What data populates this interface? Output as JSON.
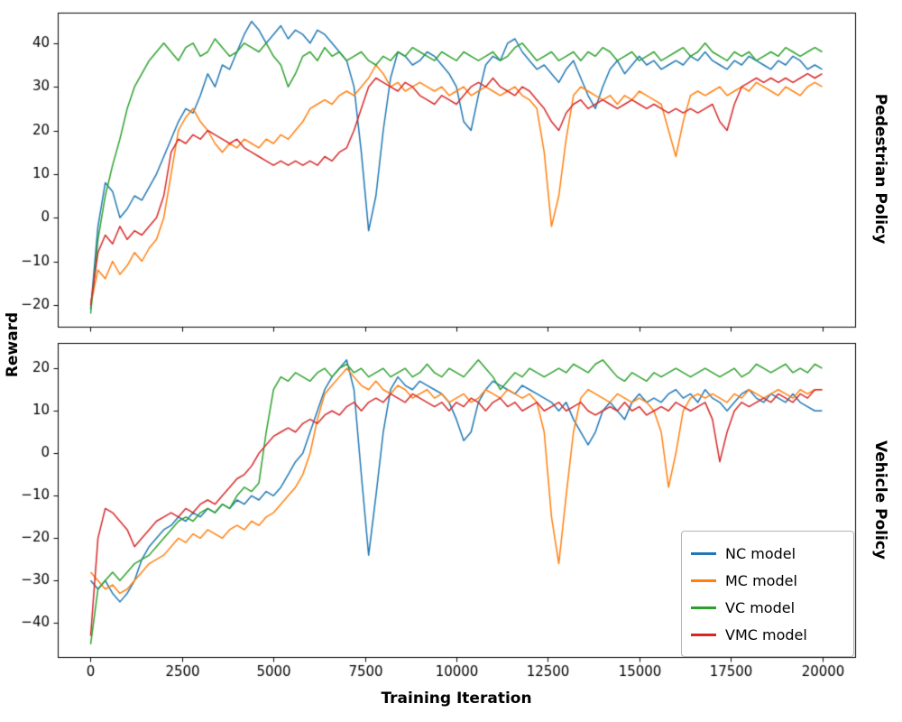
{
  "figure": {
    "ylabel": "Reward",
    "xlabel": "Training Iteration",
    "right_label_top": "Pedestrian Policy",
    "right_label_bottom": "Vehicle Policy"
  },
  "legend": {
    "position": "lower-right of bottom subplot",
    "items": [
      {
        "label": "NC model",
        "color": "#1f77b4"
      },
      {
        "label": "MC model",
        "color": "#ff7f0e"
      },
      {
        "label": "VC model",
        "color": "#2ca02c"
      },
      {
        "label": "VMC model",
        "color": "#d62728"
      }
    ]
  },
  "chart_data": [
    {
      "type": "line",
      "title": "Pedestrian Policy",
      "xlabel": "Training Iteration",
      "ylabel": "Reward",
      "x_start": 0,
      "x_step": 200,
      "xlim": [
        -900,
        20900
      ],
      "ylim": [
        -25,
        47
      ],
      "xticks": [
        0,
        2500,
        5000,
        7500,
        10000,
        12500,
        15000,
        17500,
        20000
      ],
      "yticks": [
        -20,
        -10,
        0,
        10,
        20,
        30,
        40
      ],
      "show_x_tick_labels": false,
      "grid": false,
      "series": [
        {
          "name": "NC model",
          "color": "#1f77b4",
          "values": [
            -21,
            -2,
            8,
            6,
            0,
            2,
            5,
            4,
            7,
            10,
            14,
            18,
            22,
            25,
            24,
            28,
            33,
            30,
            35,
            34,
            38,
            42,
            45,
            43,
            40,
            42,
            44,
            41,
            43,
            42,
            40,
            43,
            42,
            40,
            38,
            36,
            30,
            15,
            -3,
            5,
            20,
            32,
            38,
            37,
            35,
            36,
            38,
            37,
            35,
            33,
            30,
            22,
            20,
            28,
            35,
            37,
            36,
            40,
            41,
            38,
            36,
            34,
            35,
            33,
            31,
            34,
            36,
            32,
            28,
            25,
            30,
            34,
            36,
            33,
            35,
            37,
            35,
            36,
            34,
            35,
            36,
            35,
            37,
            36,
            38,
            36,
            35,
            34,
            36,
            35,
            37,
            36,
            35,
            34,
            36,
            35,
            37,
            36,
            34,
            35,
            34
          ]
        },
        {
          "name": "MC model",
          "color": "#ff7f0e",
          "values": [
            -20,
            -12,
            -14,
            -10,
            -13,
            -11,
            -8,
            -10,
            -7,
            -5,
            0,
            10,
            20,
            23,
            25,
            22,
            20,
            17,
            15,
            17,
            16,
            18,
            17,
            16,
            18,
            17,
            19,
            18,
            20,
            22,
            25,
            26,
            27,
            26,
            28,
            29,
            28,
            30,
            32,
            35,
            33,
            30,
            31,
            29,
            30,
            31,
            30,
            29,
            30,
            28,
            29,
            30,
            28,
            29,
            30,
            29,
            28,
            29,
            30,
            28,
            27,
            25,
            15,
            -2,
            5,
            18,
            28,
            30,
            29,
            28,
            27,
            28,
            26,
            28,
            27,
            29,
            28,
            27,
            26,
            20,
            14,
            22,
            28,
            29,
            28,
            29,
            30,
            28,
            29,
            30,
            29,
            31,
            30,
            29,
            28,
            30,
            29,
            28,
            30,
            31,
            30
          ]
        },
        {
          "name": "VC model",
          "color": "#2ca02c",
          "values": [
            -22,
            -5,
            5,
            12,
            18,
            25,
            30,
            33,
            36,
            38,
            40,
            38,
            36,
            39,
            40,
            37,
            38,
            41,
            39,
            37,
            38,
            40,
            39,
            38,
            40,
            37,
            35,
            30,
            33,
            37,
            38,
            36,
            39,
            37,
            38,
            36,
            37,
            38,
            36,
            35,
            37,
            36,
            38,
            37,
            39,
            38,
            37,
            36,
            38,
            37,
            36,
            38,
            37,
            36,
            37,
            38,
            36,
            37,
            39,
            40,
            38,
            36,
            37,
            38,
            36,
            37,
            38,
            36,
            38,
            37,
            39,
            38,
            36,
            37,
            38,
            36,
            37,
            38,
            36,
            37,
            38,
            39,
            37,
            38,
            40,
            38,
            37,
            36,
            38,
            37,
            38,
            36,
            37,
            38,
            37,
            39,
            38,
            37,
            38,
            39,
            38
          ]
        },
        {
          "name": "VMC model",
          "color": "#d62728",
          "values": [
            -20,
            -8,
            -4,
            -6,
            -2,
            -5,
            -3,
            -4,
            -2,
            0,
            5,
            15,
            18,
            17,
            19,
            18,
            20,
            19,
            18,
            17,
            18,
            16,
            15,
            14,
            13,
            12,
            13,
            12,
            13,
            12,
            13,
            12,
            14,
            13,
            15,
            16,
            20,
            25,
            30,
            32,
            31,
            30,
            29,
            31,
            30,
            28,
            27,
            26,
            28,
            27,
            26,
            28,
            30,
            31,
            30,
            32,
            30,
            29,
            28,
            30,
            29,
            27,
            25,
            22,
            20,
            24,
            26,
            27,
            25,
            26,
            27,
            26,
            25,
            26,
            27,
            26,
            25,
            26,
            25,
            24,
            25,
            24,
            25,
            24,
            25,
            26,
            22,
            20,
            26,
            30,
            31,
            32,
            31,
            32,
            31,
            32,
            31,
            32,
            33,
            32,
            33
          ]
        }
      ]
    },
    {
      "type": "line",
      "title": "Vehicle Policy",
      "xlabel": "Training Iteration",
      "ylabel": "Reward",
      "x_start": 0,
      "x_step": 200,
      "xlim": [
        -900,
        20900
      ],
      "ylim": [
        -48,
        26
      ],
      "xticks": [
        0,
        2500,
        5000,
        7500,
        10000,
        12500,
        15000,
        17500,
        20000
      ],
      "yticks": [
        -40,
        -30,
        -20,
        -10,
        0,
        10,
        20
      ],
      "show_x_tick_labels": true,
      "grid": false,
      "series": [
        {
          "name": "NC model",
          "color": "#1f77b4",
          "values": [
            -30,
            -32,
            -30,
            -33,
            -35,
            -33,
            -30,
            -25,
            -22,
            -20,
            -18,
            -17,
            -15,
            -16,
            -14,
            -15,
            -13,
            -14,
            -12,
            -13,
            -11,
            -12,
            -10,
            -11,
            -9,
            -10,
            -8,
            -5,
            -2,
            0,
            5,
            10,
            15,
            18,
            20,
            22,
            15,
            -5,
            -24,
            -10,
            5,
            15,
            18,
            16,
            15,
            17,
            16,
            15,
            14,
            12,
            8,
            3,
            5,
            12,
            15,
            17,
            16,
            15,
            14,
            16,
            15,
            14,
            13,
            12,
            10,
            12,
            8,
            5,
            2,
            5,
            10,
            12,
            10,
            8,
            12,
            14,
            12,
            13,
            12,
            14,
            15,
            13,
            14,
            12,
            15,
            13,
            12,
            10,
            12,
            14,
            15,
            13,
            12,
            14,
            13,
            12,
            14,
            12,
            11,
            10,
            10
          ]
        },
        {
          "name": "MC model",
          "color": "#ff7f0e",
          "values": [
            -28,
            -30,
            -32,
            -31,
            -33,
            -32,
            -30,
            -28,
            -26,
            -25,
            -24,
            -22,
            -20,
            -21,
            -19,
            -20,
            -18,
            -19,
            -20,
            -18,
            -17,
            -18,
            -16,
            -17,
            -15,
            -14,
            -12,
            -10,
            -8,
            -5,
            0,
            8,
            14,
            16,
            18,
            20,
            18,
            16,
            15,
            17,
            15,
            14,
            16,
            15,
            13,
            14,
            15,
            13,
            14,
            12,
            13,
            14,
            12,
            13,
            15,
            14,
            13,
            15,
            14,
            13,
            14,
            12,
            5,
            -15,
            -26,
            -10,
            5,
            13,
            15,
            14,
            13,
            12,
            14,
            13,
            12,
            13,
            12,
            10,
            5,
            -8,
            0,
            10,
            13,
            14,
            13,
            14,
            13,
            12,
            14,
            13,
            15,
            14,
            13,
            14,
            15,
            14,
            13,
            15,
            14,
            15,
            15
          ]
        },
        {
          "name": "VC model",
          "color": "#2ca02c",
          "values": [
            -45,
            -32,
            -30,
            -28,
            -30,
            -28,
            -26,
            -25,
            -24,
            -22,
            -20,
            -18,
            -16,
            -15,
            -16,
            -14,
            -13,
            -14,
            -12,
            -13,
            -10,
            -8,
            -9,
            -7,
            5,
            15,
            18,
            17,
            19,
            18,
            17,
            19,
            20,
            18,
            20,
            21,
            19,
            20,
            18,
            19,
            20,
            18,
            19,
            20,
            18,
            19,
            21,
            19,
            18,
            20,
            19,
            18,
            20,
            22,
            20,
            18,
            15,
            17,
            19,
            18,
            20,
            19,
            18,
            19,
            20,
            19,
            21,
            20,
            19,
            21,
            22,
            20,
            18,
            17,
            19,
            18,
            17,
            19,
            18,
            19,
            20,
            19,
            18,
            19,
            20,
            19,
            18,
            19,
            20,
            18,
            19,
            21,
            20,
            19,
            20,
            21,
            19,
            20,
            19,
            21,
            20
          ]
        },
        {
          "name": "VMC model",
          "color": "#d62728",
          "values": [
            -43,
            -20,
            -13,
            -14,
            -16,
            -18,
            -22,
            -20,
            -18,
            -16,
            -15,
            -14,
            -15,
            -13,
            -14,
            -12,
            -11,
            -12,
            -10,
            -8,
            -6,
            -5,
            -3,
            0,
            2,
            4,
            5,
            6,
            5,
            7,
            8,
            7,
            9,
            10,
            9,
            11,
            12,
            10,
            12,
            13,
            12,
            14,
            13,
            12,
            14,
            13,
            12,
            11,
            12,
            10,
            12,
            11,
            13,
            12,
            10,
            12,
            13,
            11,
            12,
            10,
            11,
            12,
            10,
            11,
            12,
            10,
            11,
            12,
            10,
            9,
            10,
            11,
            10,
            12,
            10,
            11,
            9,
            10,
            11,
            10,
            12,
            11,
            10,
            11,
            12,
            8,
            -2,
            5,
            10,
            12,
            11,
            12,
            13,
            12,
            14,
            13,
            12,
            14,
            13,
            15,
            15
          ]
        }
      ]
    }
  ]
}
